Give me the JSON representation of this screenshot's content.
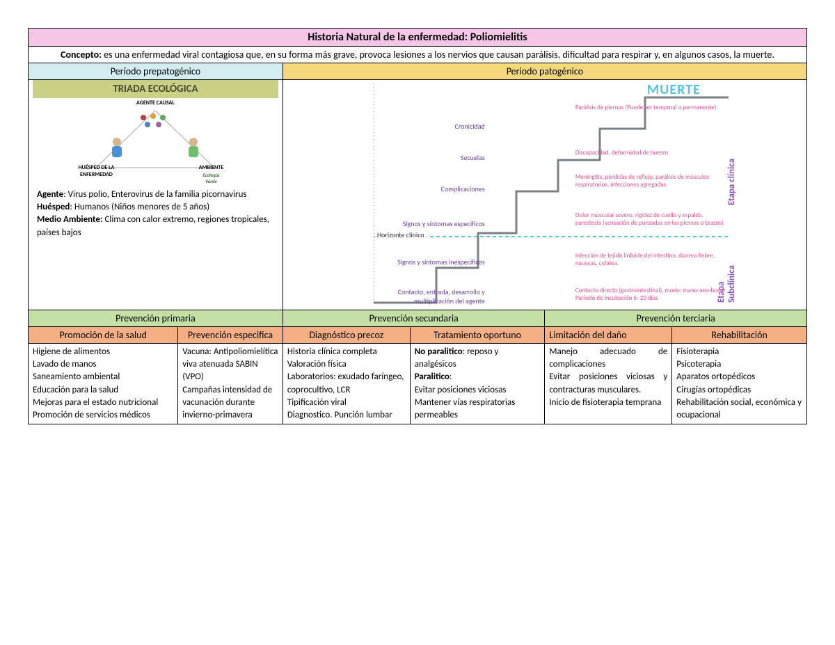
{
  "title": "Historia Natural de la enfermedad: Poliomielitis",
  "concepto": {
    "label": "Concepto:",
    "text": "es una enfermedad viral contagiosa que, en su forma más grave, provoca lesiones a los nervios que causan parálisis, dificultad para respirar y, en algunos casos, la muerte."
  },
  "periodo_prepatogenico": "Período prepatogénico",
  "periodo_patogenico": "Periodo patogénico",
  "triada": {
    "header": "TRIADA ECOLÓGICA",
    "agente_causal": "AGENTE CAUSAL",
    "huesped": "HUÉSPED DE LA\nENFERMEDAD",
    "ambiente": "AMBIENTE",
    "ecologia": "Ecología\nVerde",
    "agente_label": "Agente",
    "agente_text": ": Virus polio, Enterovirus de la familia picornavirus",
    "huesped_label": "Huésped",
    "huesped_text": ": Humanos (Niños menores de 5 años)",
    "medio_label": "Medio Ambiente:",
    "medio_text": " Clima con calor extremo, regiones tropicales, países bajos"
  },
  "patogenico": {
    "muerte": "MUERTE",
    "etapa_clinica": "Etapa clínica",
    "etapa_subclinica": "Etapa\nSubclínica",
    "horizonte": "Horizonte clínico",
    "stages": [
      {
        "label": "Cronicidad",
        "desc": "Parálisis de piernas (Puede ser temporal o permanente)"
      },
      {
        "label": "Secuelas",
        "desc": "Discapacidad, deformidad de huesos"
      },
      {
        "label": "Complicaciones",
        "desc": "Meningitis, pérdidas de reflejo, parálisis de músculos respiratorios, infecciones agregadas"
      },
      {
        "label": "Signos y síntomas específicos",
        "desc": "Dolor muscular severo, rigidez de cuello y espalda, parestesia (sensación de punzadas en las piernas o brazos)"
      },
      {
        "label": "Signos y síntomas inespecíficos",
        "desc": "Infección de tejido linfoide del intestino, diarrea fiebre, nauseas, cefalea."
      },
      {
        "label": "Contacto, entrada, desarrollo y multiplicación del agente",
        "desc": "Contacto directo (gastrointestinal), modo: mano-ano-boca. Periodo de Incubación 6- 20 días"
      }
    ],
    "stair": {
      "stroke": "#7a8185",
      "stroke_width": 3,
      "vertical_dots": "#888"
    }
  },
  "prevencion": {
    "primaria": "Prevención primaria",
    "secundaria": "Prevención secundaria",
    "terciaria": "Prevención terciaria",
    "cols": [
      {
        "header": "Promoción de la salud",
        "body": "Higiene de alimentos\nLavado de manos\nSaneamiento ambiental\nEducación para la salud\nMejoras para el estado nutricional\nPromoción de servicios médicos"
      },
      {
        "header": "Prevención especifica",
        "body": "Vacuna: Antipoliomielítica viva atenuada SABIN (VPO)\nCampañas intensidad de vacunación durante invierno-primavera"
      },
      {
        "header": "Diagnóstico precoz",
        "body": "Historia clínica completa\nValoración física\nLaboratorios: exudado faríngeo, coprocultivo, LCR\nTipificación viral\nDiagnostico. Punción lumbar"
      },
      {
        "header": "Tratamiento oportuno",
        "body_html": "<b>No paralitico</b>: reposo y analgésicos<br><b>Paralitico</b>:<br>Evitar posiciones viciosas<br>Mantener vías respiratorias permeables"
      },
      {
        "header": "Limitación del daño",
        "body": "Manejo adecuado de complicaciones\nEvitar posiciones viciosas y contracturas musculares.\nInicio de fisioterapia temprana"
      },
      {
        "header": "Rehabilitación",
        "body": "Fisioterapia\nPsicoterapia\nAparatos ortopédicos\nCirugías ortopédicas\nRehabilitación social, económica y ocupacional"
      }
    ]
  },
  "colors": {
    "title_bg": "#f5c6e6",
    "prepato_bg": "#d4edf0",
    "pato_bg": "#f5d77d",
    "triada_bg": "#cad184",
    "prev_bg": "#c5e0a5",
    "promo_bg": "#f4b084",
    "muerte_color": "#4fc5e8",
    "etapa_color": "#8a4fc7",
    "stage_label_color": "#6a3fa0",
    "stage_desc_color": "#e84a8f"
  }
}
